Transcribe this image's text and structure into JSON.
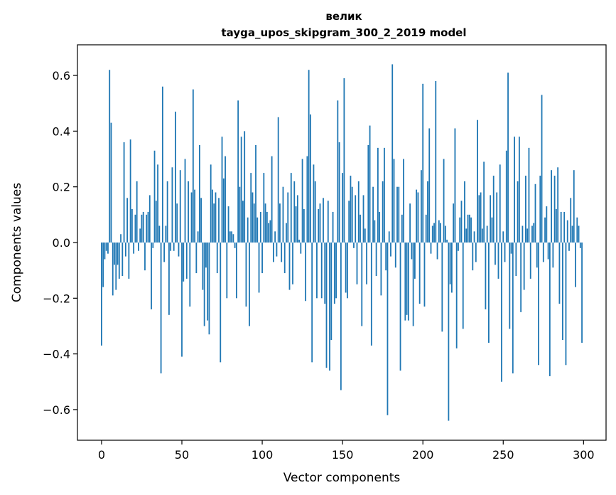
{
  "chart_data": {
    "type": "bar",
    "title_line1": "велик",
    "title_line2": "tayga_upos_skipgram_300_2_2019 model",
    "xlabel": "Vector components",
    "ylabel": "Components values",
    "xlim": [
      -15,
      314
    ],
    "ylim": [
      -0.71,
      0.71
    ],
    "xticks": [
      0,
      50,
      100,
      150,
      200,
      250,
      300
    ],
    "xtick_labels": [
      "0",
      "50",
      "100",
      "150",
      "200",
      "250",
      "300"
    ],
    "yticks": [
      -0.6,
      -0.4,
      -0.2,
      0.0,
      0.2,
      0.4,
      0.6
    ],
    "ytick_labels": [
      "−0.6",
      "−0.4",
      "−0.2",
      "0.0",
      "0.2",
      "0.4",
      "0.6"
    ],
    "bar_color": "#1f77b4",
    "grid": false,
    "x": "0..299 (component index)",
    "values": [
      -0.37,
      -0.16,
      -0.06,
      -0.03,
      -0.04,
      0.62,
      0.43,
      -0.19,
      -0.08,
      -0.17,
      -0.08,
      -0.13,
      0.03,
      -0.12,
      0.36,
      -0.05,
      0.16,
      -0.13,
      0.37,
      0.12,
      -0.04,
      0.1,
      0.22,
      -0.03,
      0.05,
      0.1,
      0.11,
      -0.1,
      0.1,
      0.11,
      0.17,
      -0.24,
      -0.02,
      0.33,
      0.15,
      0.28,
      0.06,
      -0.47,
      0.56,
      -0.07,
      0.06,
      0.22,
      -0.26,
      -0.03,
      0.27,
      -0.03,
      0.47,
      0.14,
      -0.05,
      0.26,
      -0.41,
      -0.14,
      0.3,
      -0.13,
      0.22,
      -0.23,
      0.18,
      0.55,
      0.19,
      -0.11,
      0.04,
      0.35,
      0.16,
      -0.17,
      -0.3,
      -0.09,
      -0.28,
      -0.33,
      0.28,
      0.19,
      0.14,
      0.18,
      -0.11,
      0.16,
      -0.43,
      0.38,
      0.23,
      0.31,
      -0.2,
      0.13,
      0.04,
      0.04,
      0.03,
      -0.02,
      -0.2,
      0.51,
      0.2,
      0.38,
      0.15,
      0.4,
      -0.23,
      0.09,
      -0.3,
      0.25,
      0.18,
      0.14,
      0.35,
      0.09,
      -0.18,
      0.11,
      -0.11,
      0.25,
      0.14,
      0.11,
      0.07,
      0.08,
      0.31,
      -0.07,
      0.04,
      -0.05,
      0.45,
      0.14,
      -0.07,
      0.2,
      -0.11,
      0.07,
      0.18,
      -0.17,
      0.25,
      -0.15,
      0.22,
      0.13,
      0.17,
      0.01,
      -0.04,
      0.3,
      0.12,
      -0.21,
      0.31,
      0.62,
      0.46,
      -0.43,
      0.28,
      0.22,
      -0.2,
      0.12,
      0.14,
      -0.2,
      0.16,
      -0.22,
      -0.45,
      0.15,
      -0.46,
      -0.35,
      0.11,
      -0.22,
      -0.2,
      0.51,
      0.36,
      -0.53,
      0.25,
      0.59,
      -0.18,
      -0.2,
      0.15,
      0.24,
      0.2,
      -0.02,
      0.17,
      -0.15,
      0.22,
      0.1,
      -0.3,
      0.17,
      0.05,
      -0.15,
      0.35,
      0.42,
      -0.37,
      0.2,
      0.08,
      -0.12,
      0.34,
      0.11,
      -0.19,
      0.22,
      0.34,
      -0.1,
      -0.62,
      0.04,
      -0.05,
      0.64,
      0.3,
      -0.09,
      0.2,
      0.2,
      -0.46,
      0.1,
      0.3,
      -0.28,
      -0.26,
      -0.28,
      0.14,
      -0.06,
      -0.3,
      -0.13,
      0.19,
      0.18,
      -0.22,
      0.26,
      0.57,
      -0.23,
      0.1,
      0.22,
      0.41,
      -0.04,
      0.06,
      0.07,
      0.58,
      -0.06,
      0.08,
      0.07,
      -0.32,
      0.3,
      0.06,
      0.01,
      -0.64,
      -0.15,
      -0.18,
      0.14,
      0.41,
      -0.38,
      -0.03,
      0.09,
      0.15,
      -0.31,
      0.22,
      0.05,
      0.1,
      0.1,
      0.09,
      -0.1,
      0.04,
      -0.07,
      0.44,
      0.17,
      0.18,
      0.05,
      0.29,
      -0.24,
      0.06,
      -0.36,
      0.17,
      0.09,
      0.24,
      -0.08,
      0.18,
      -0.13,
      0.28,
      -0.5,
      0.04,
      -0.07,
      0.33,
      0.61,
      -0.31,
      -0.04,
      -0.47,
      0.38,
      -0.12,
      0.22,
      0.38,
      -0.25,
      0.06,
      -0.17,
      0.24,
      0.05,
      0.34,
      -0.13,
      0.06,
      0.07,
      0.21,
      -0.09,
      -0.44,
      0.24,
      0.53,
      -0.07,
      0.09,
      0.13,
      -0.06,
      -0.48,
      0.26,
      -0.09,
      0.24,
      0.12,
      0.27,
      -0.22,
      0.11,
      -0.35,
      0.11,
      -0.44,
      0.08,
      -0.03,
      0.16,
      0.06,
      0.26,
      -0.16,
      0.09,
      0.06,
      -0.02,
      -0.36
    ]
  }
}
